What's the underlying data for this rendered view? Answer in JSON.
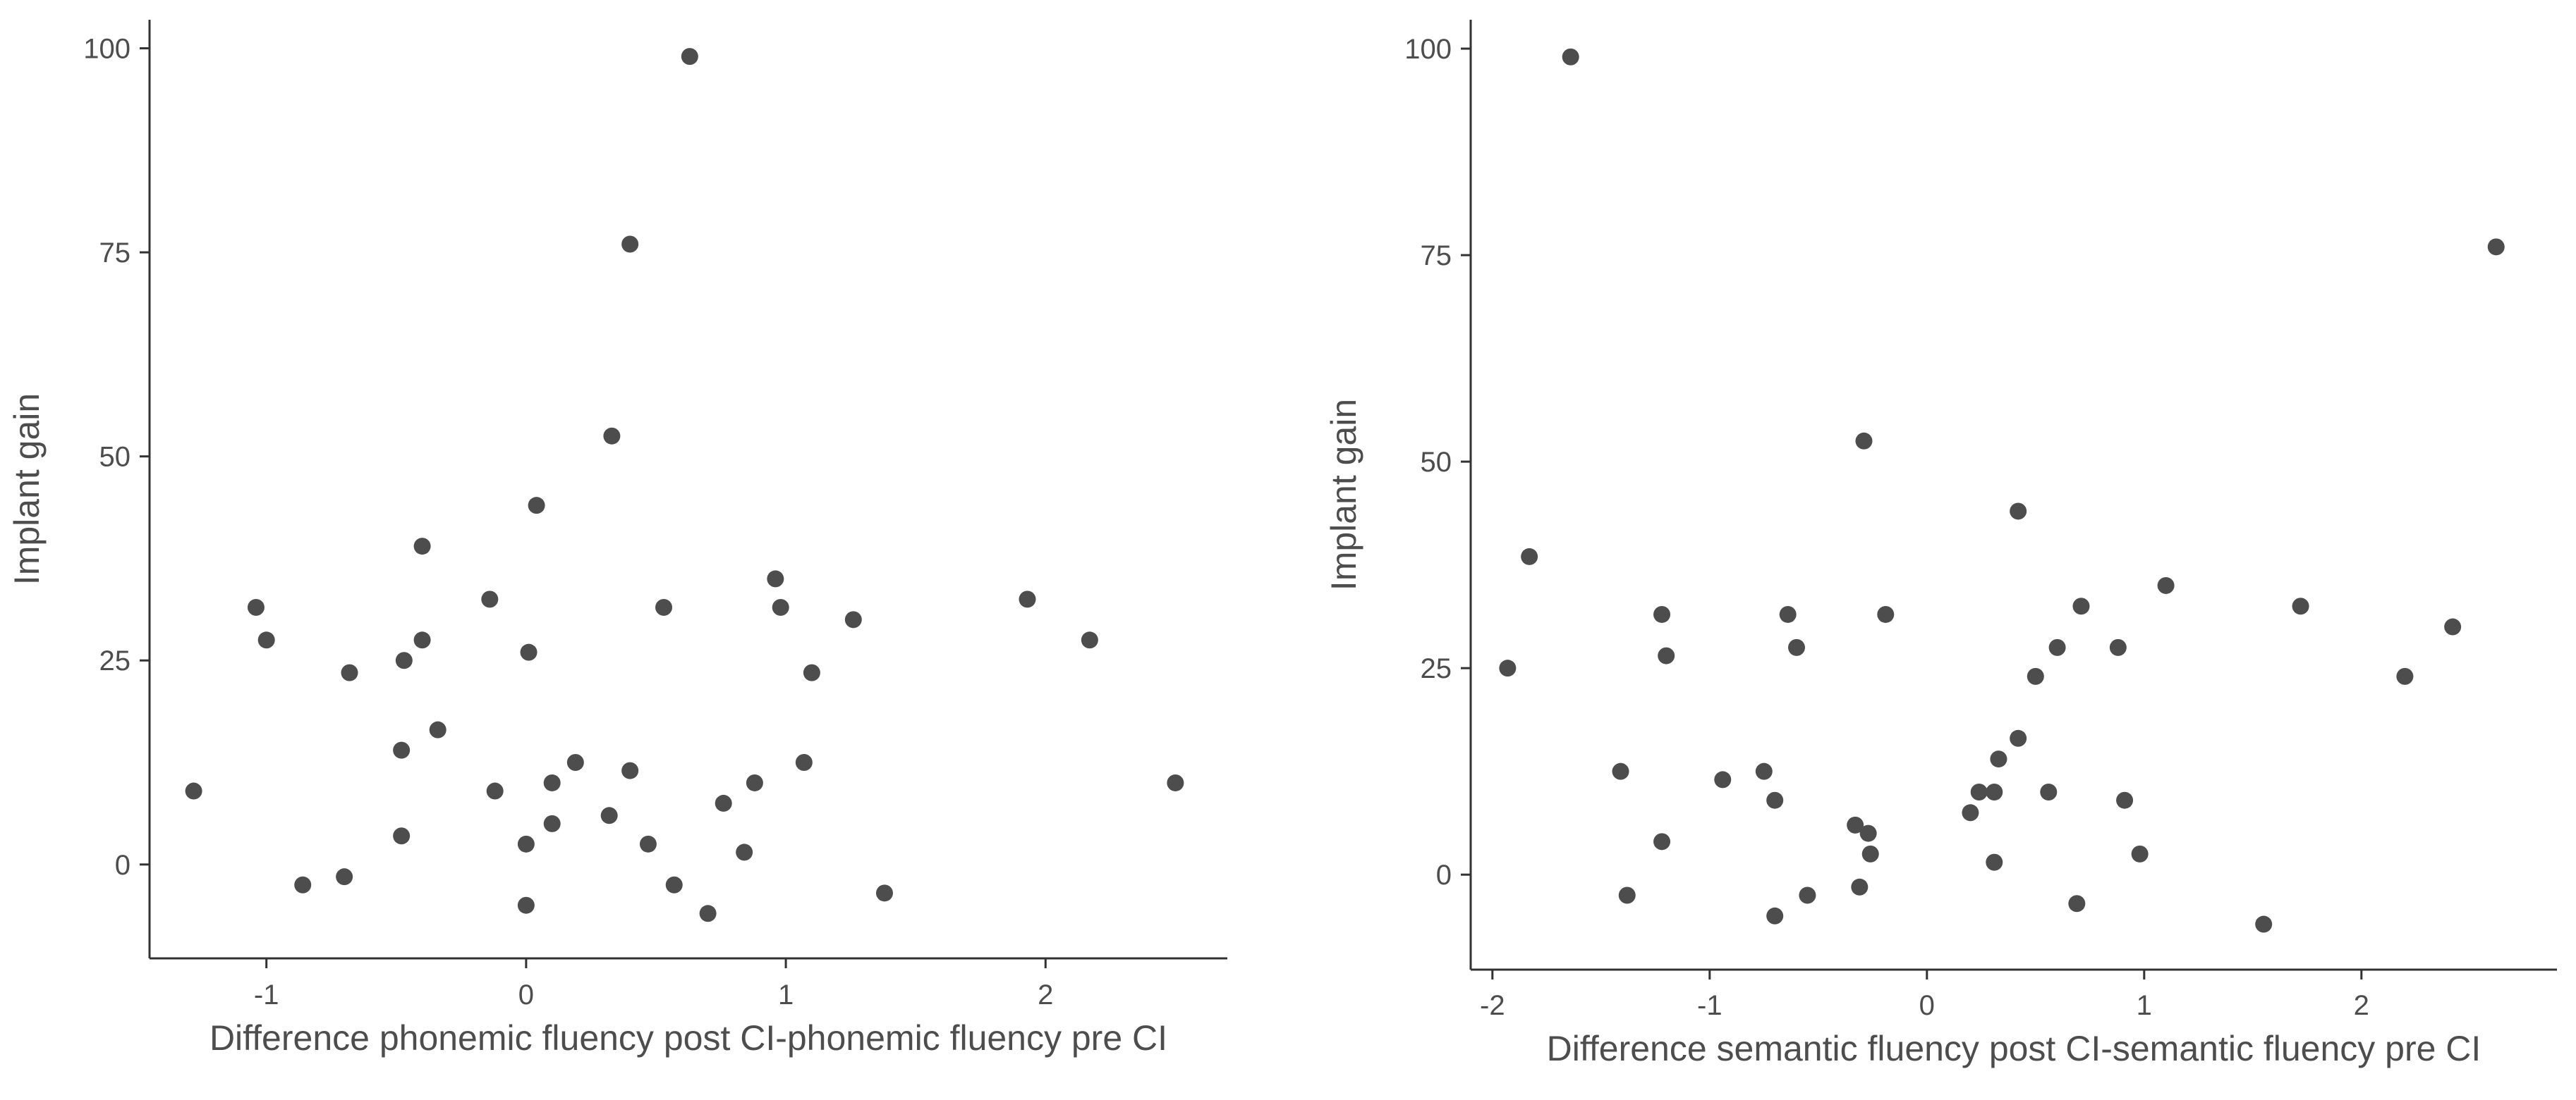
{
  "chart_data": [
    {
      "type": "scatter",
      "xlabel": "Difference phonemic fluency post CI-phonemic fluency pre CI",
      "ylabel": "Implant gain",
      "xlim": [
        -1.45,
        2.7
      ],
      "ylim": [
        -11.5,
        103.5
      ],
      "xticks": [
        -1,
        0,
        1,
        2
      ],
      "xtick_labels": [
        "-1",
        "0",
        "1",
        "2"
      ],
      "yticks": [
        0,
        25,
        50,
        75,
        100
      ],
      "ytick_labels": [
        "0",
        "25",
        "50",
        "75",
        "100"
      ],
      "grid": false,
      "point_color": "#4d4d4d",
      "points": [
        {
          "x": 0.63,
          "y": 99
        },
        {
          "x": 0.4,
          "y": 76
        },
        {
          "x": 0.33,
          "y": 52.5
        },
        {
          "x": 0.04,
          "y": 44
        },
        {
          "x": -0.4,
          "y": 39
        },
        {
          "x": 0.96,
          "y": 35
        },
        {
          "x": 1.93,
          "y": 32.5
        },
        {
          "x": -0.14,
          "y": 32.5
        },
        {
          "x": -1.04,
          "y": 31.5
        },
        {
          "x": 0.53,
          "y": 31.5
        },
        {
          "x": 0.98,
          "y": 31.5
        },
        {
          "x": 1.26,
          "y": 30
        },
        {
          "x": -1.0,
          "y": 27.5
        },
        {
          "x": -0.4,
          "y": 27.5
        },
        {
          "x": 2.17,
          "y": 27.5
        },
        {
          "x": 0.01,
          "y": 26
        },
        {
          "x": -0.47,
          "y": 25
        },
        {
          "x": -0.68,
          "y": 23.5
        },
        {
          "x": 1.1,
          "y": 23.5
        },
        {
          "x": -0.34,
          "y": 16.5
        },
        {
          "x": -0.48,
          "y": 14
        },
        {
          "x": 0.19,
          "y": 12.5
        },
        {
          "x": 1.07,
          "y": 12.5
        },
        {
          "x": 0.4,
          "y": 11.5
        },
        {
          "x": 0.1,
          "y": 10
        },
        {
          "x": 0.88,
          "y": 10
        },
        {
          "x": 2.5,
          "y": 10
        },
        {
          "x": -1.28,
          "y": 9
        },
        {
          "x": -0.12,
          "y": 9
        },
        {
          "x": 0.76,
          "y": 7.5
        },
        {
          "x": 0.32,
          "y": 6
        },
        {
          "x": 0.1,
          "y": 5
        },
        {
          "x": -0.48,
          "y": 3.5
        },
        {
          "x": 0.0,
          "y": 2.5
        },
        {
          "x": 0.47,
          "y": 2.5
        },
        {
          "x": 0.84,
          "y": 1.5
        },
        {
          "x": -0.7,
          "y": -1.5
        },
        {
          "x": -0.86,
          "y": -2.5
        },
        {
          "x": 0.57,
          "y": -2.5
        },
        {
          "x": 1.38,
          "y": -3.5
        },
        {
          "x": 0.0,
          "y": -5
        },
        {
          "x": 0.7,
          "y": -6
        }
      ]
    },
    {
      "type": "scatter",
      "xlabel": "Difference semantic fluency post CI-semantic fluency pre CI",
      "ylabel": "Implant gain",
      "xlim": [
        -2.1,
        2.9
      ],
      "ylim": [
        -11.5,
        103.5
      ],
      "xticks": [
        -2,
        -1,
        0,
        1,
        2
      ],
      "xtick_labels": [
        "-2",
        "-1",
        "0",
        "1",
        "2"
      ],
      "yticks": [
        0,
        25,
        50,
        75,
        100
      ],
      "ytick_labels": [
        "0",
        "25",
        "50",
        "75",
        "100"
      ],
      "grid": false,
      "point_color": "#4d4d4d",
      "points": [
        {
          "x": -1.64,
          "y": 99
        },
        {
          "x": 2.62,
          "y": 76
        },
        {
          "x": -0.29,
          "y": 52.5
        },
        {
          "x": 0.42,
          "y": 44
        },
        {
          "x": -1.83,
          "y": 38.5
        },
        {
          "x": 1.1,
          "y": 35
        },
        {
          "x": 0.71,
          "y": 32.5
        },
        {
          "x": 1.72,
          "y": 32.5
        },
        {
          "x": -1.22,
          "y": 31.5
        },
        {
          "x": -0.64,
          "y": 31.5
        },
        {
          "x": -0.19,
          "y": 31.5
        },
        {
          "x": 2.42,
          "y": 30
        },
        {
          "x": -0.6,
          "y": 27.5
        },
        {
          "x": 0.6,
          "y": 27.5
        },
        {
          "x": 0.88,
          "y": 27.5
        },
        {
          "x": -1.2,
          "y": 26.5
        },
        {
          "x": -1.93,
          "y": 25
        },
        {
          "x": 0.5,
          "y": 24
        },
        {
          "x": 2.2,
          "y": 24
        },
        {
          "x": 0.42,
          "y": 16.5
        },
        {
          "x": 0.33,
          "y": 14
        },
        {
          "x": -1.41,
          "y": 12.5
        },
        {
          "x": -0.75,
          "y": 12.5
        },
        {
          "x": -0.94,
          "y": 11.5
        },
        {
          "x": 0.24,
          "y": 10
        },
        {
          "x": 0.31,
          "y": 10
        },
        {
          "x": 0.56,
          "y": 10
        },
        {
          "x": -0.7,
          "y": 9
        },
        {
          "x": 0.91,
          "y": 9
        },
        {
          "x": 0.2,
          "y": 7.5
        },
        {
          "x": -0.33,
          "y": 6
        },
        {
          "x": -0.27,
          "y": 5
        },
        {
          "x": -1.22,
          "y": 4
        },
        {
          "x": -0.26,
          "y": 2.5
        },
        {
          "x": 0.98,
          "y": 2.5
        },
        {
          "x": 0.31,
          "y": 1.5
        },
        {
          "x": -0.31,
          "y": -1.5
        },
        {
          "x": -1.38,
          "y": -2.5
        },
        {
          "x": -0.55,
          "y": -2.5
        },
        {
          "x": 0.69,
          "y": -3.5
        },
        {
          "x": -0.7,
          "y": -5
        },
        {
          "x": 1.55,
          "y": -6
        }
      ]
    }
  ]
}
